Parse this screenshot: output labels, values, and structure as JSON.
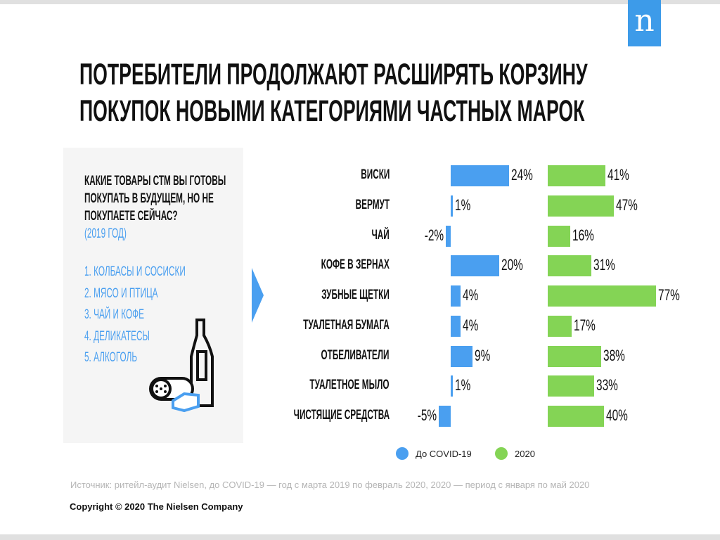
{
  "logo": "n",
  "title": [
    "ПОТРЕБИТЕЛИ ПРОДОЛЖАЮТ РАСШИРЯТЬ КОРЗИНУ",
    "ПОКУПОК НОВЫМИ КАТЕГОРИЯМИ ЧАСТНЫХ МАРОК"
  ],
  "panel": {
    "question": [
      "КАКИЕ ТОВАРЫ СТМ ВЫ ГОТОВЫ",
      "ПОКУПАТЬ В БУДУЩЕМ, НО НЕ",
      "ПОКУПАЕТЕ СЕЙЧАС?"
    ],
    "year": "(2019 ГОД)",
    "items": [
      "1. КОЛБАСЫ И СОСИСКИ",
      "2. МЯСО И ПТИЦА",
      "3. ЧАЙ И КОФЕ",
      "4. ДЕЛИКАТЕСЫ",
      "5. АЛКОГОЛЬ"
    ]
  },
  "chart_data": {
    "type": "bar",
    "orientation": "horizontal",
    "categories": [
      "ВИСКИ",
      "ВЕРМУТ",
      "ЧАЙ",
      "КОФЕ В ЗЕРНАХ",
      "ЗУБНЫЕ ЩЕТКИ",
      "ТУАЛЕТНАЯ БУМАГА",
      "ОТБЕЛИВАТЕЛИ",
      "ТУАЛЕТНОЕ МЫЛО",
      "ЧИСТЯЩИЕ СРЕДСТВА"
    ],
    "series": [
      {
        "name": "До COVID-19",
        "color": "#4a9ff0",
        "values": [
          24,
          1,
          -2,
          20,
          4,
          4,
          9,
          1,
          -5
        ],
        "labels": [
          "24%",
          "1%",
          "-2%",
          "20%",
          "4%",
          "4%",
          "9%",
          "1%",
          "-5%"
        ]
      },
      {
        "name": "2020",
        "color": "#84d455",
        "values": [
          41,
          47,
          16,
          31,
          77,
          17,
          38,
          33,
          40
        ],
        "labels": [
          "41%",
          "47%",
          "16%",
          "31%",
          "77%",
          "17%",
          "38%",
          "33%",
          "40%"
        ]
      }
    ],
    "legend": "bottom"
  },
  "source": "Источник: ритейл-аудит Nielsen, до COVID-19 — год с марта 2019 по февраль 2020, 2020 — период с января по май 2020",
  "copyright": "Copyright © 2020 The Nielsen Company"
}
